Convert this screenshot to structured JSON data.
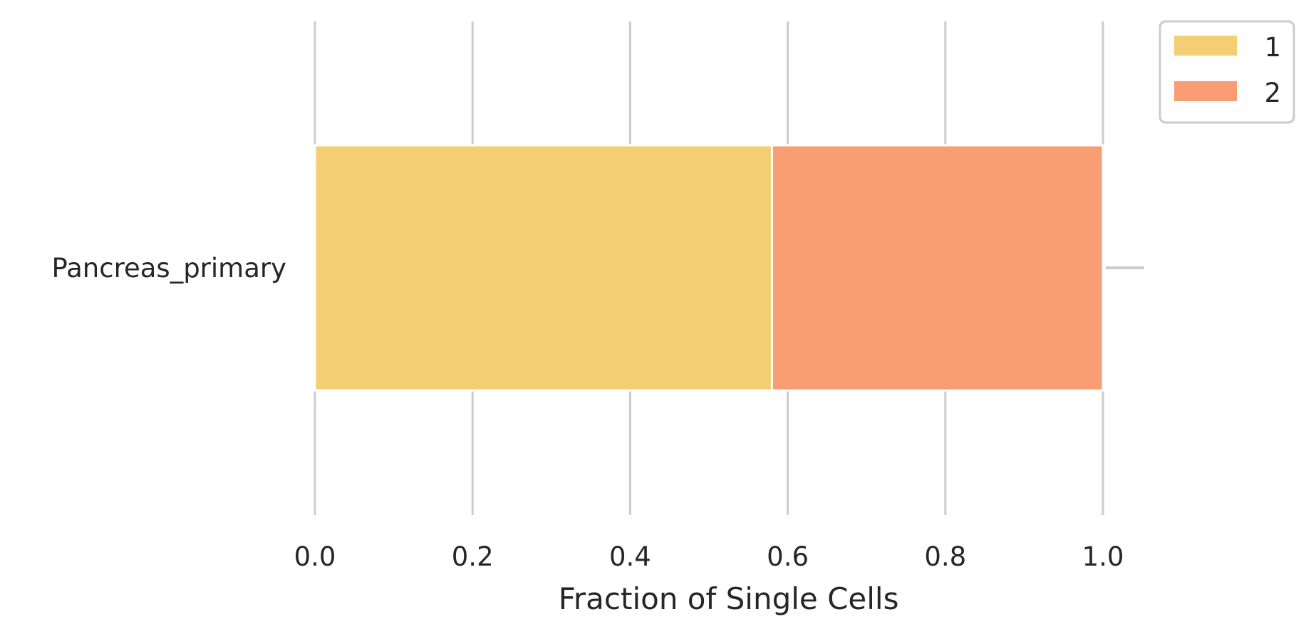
{
  "chart_data": {
    "type": "bar",
    "orientation": "horizontal",
    "stacked": true,
    "categories": [
      "Pancreas_primary"
    ],
    "series": [
      {
        "name": "1",
        "values": [
          0.58
        ],
        "color": "#F4CE72"
      },
      {
        "name": "2",
        "values": [
          0.42
        ],
        "color": "#F89D74"
      }
    ],
    "xlabel": "Fraction of Single Cells",
    "ylabel": "",
    "title": "",
    "xlim": [
      0.0,
      1.05
    ],
    "xticks": [
      "0.0",
      "0.2",
      "0.4",
      "0.6",
      "0.8",
      "1.0"
    ],
    "xtick_values": [
      0.0,
      0.2,
      0.4,
      0.6,
      0.8,
      1.0
    ],
    "grid": "vertical",
    "legend_placement": "outside-top-right",
    "colors": {
      "grid": "#CCCCCC",
      "text": "#262626",
      "bar_edge": "#FFFFFF"
    }
  }
}
